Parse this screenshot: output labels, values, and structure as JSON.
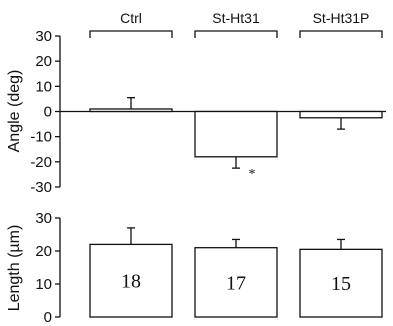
{
  "chart_data": [
    {
      "type": "bar",
      "categories": [
        "Ctrl",
        "St-Ht31",
        "St-Ht31P"
      ],
      "ylabel": "Angle (deg)",
      "ylim": [
        -30,
        30
      ],
      "yticks": [
        30,
        20,
        10,
        0,
        -10,
        -20,
        -30
      ],
      "values": [
        1,
        -18,
        -2.5
      ],
      "errors": [
        4.5,
        4.5,
        4.5
      ],
      "annotations": [
        "",
        "*",
        ""
      ],
      "grid": false
    },
    {
      "type": "bar",
      "categories": [
        "Ctrl",
        "St-Ht31",
        "St-Ht31P"
      ],
      "ylabel": "Length (µm)",
      "ylim": [
        0,
        30
      ],
      "yticks": [
        30,
        20,
        10,
        0
      ],
      "values": [
        22,
        21,
        20.5
      ],
      "errors": [
        5,
        2.5,
        3
      ],
      "bar_labels": [
        "18",
        "17",
        "15"
      ],
      "grid": false
    }
  ]
}
